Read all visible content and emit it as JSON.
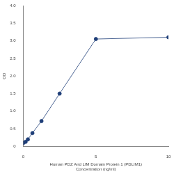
{
  "chart_data": {
    "type": "line",
    "xlabel": [
      "Human PDZ And LIM Domain Protein 1 (PDLIM1)",
      "Concentration (ng/ml)"
    ],
    "ylabel": "OD",
    "x": [
      0,
      0.156,
      0.312,
      0.625,
      1.25,
      2.5,
      5,
      10
    ],
    "values": [
      0.1,
      0.13,
      0.2,
      0.38,
      0.72,
      1.5,
      3.05,
      3.1
    ],
    "color": "#1f3f78",
    "marker": "circle",
    "xlim": [
      0,
      10
    ],
    "xticks": [
      0,
      5,
      10
    ],
    "ylim": [
      0,
      4
    ],
    "yticks": [
      0,
      0.5,
      1,
      1.5,
      2,
      2.5,
      3,
      3.5,
      4
    ],
    "grid": false
  }
}
